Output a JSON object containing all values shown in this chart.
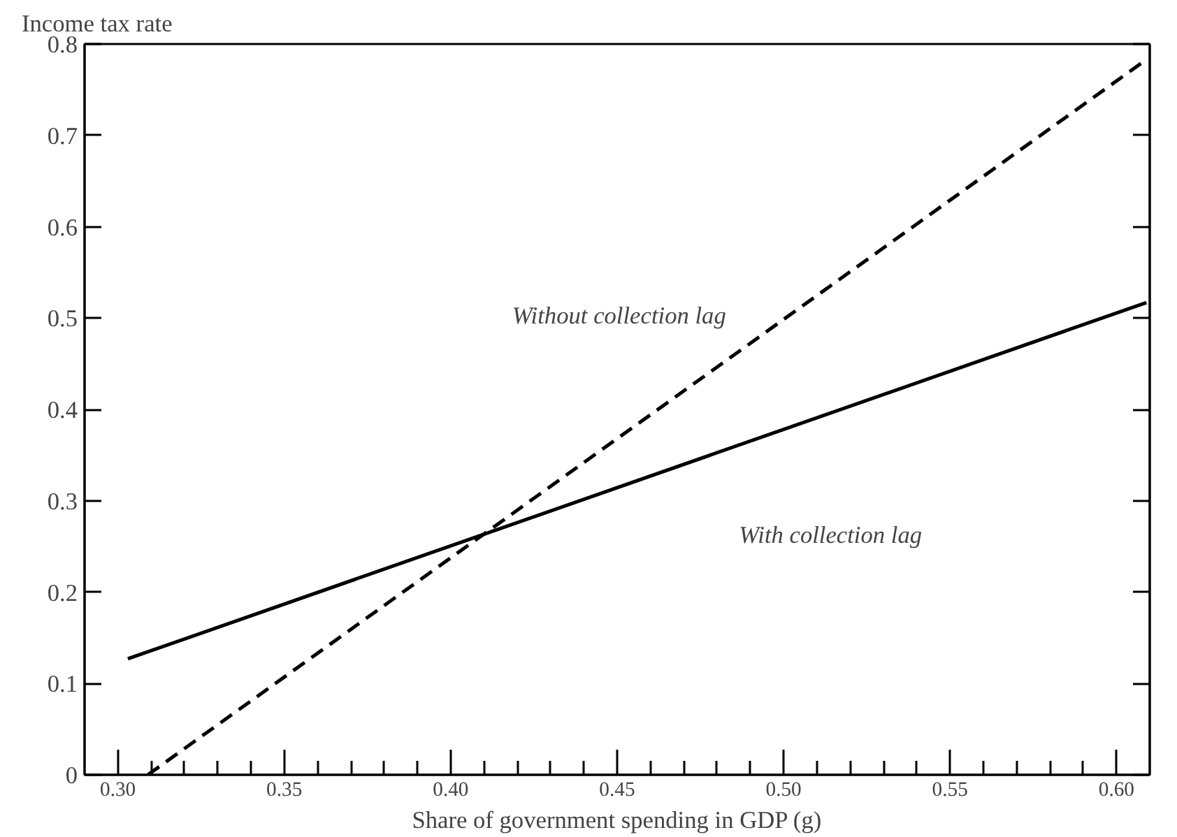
{
  "chart_data": {
    "type": "line",
    "ylabel": "Income tax rate",
    "xlabel": "Share of government spending in GDP (g)",
    "series": [
      {
        "name": "With collection lag",
        "x": [
          0.303,
          0.609
        ],
        "values": [
          0.127,
          0.517
        ],
        "color": "#000000",
        "line_style": "solid"
      },
      {
        "name": "Without collection lag",
        "x": [
          0.309,
          0.609
        ],
        "values": [
          0.0,
          0.783
        ],
        "color": "#000000",
        "line_style": "dashed"
      }
    ],
    "xlim": [
      0.29,
      0.61
    ],
    "ylim": [
      0,
      0.8
    ],
    "xticks": [
      {
        "value": 0.3,
        "label": "0.30"
      },
      {
        "value": 0.31,
        "label": null
      },
      {
        "value": 0.32,
        "label": null
      },
      {
        "value": 0.33,
        "label": null
      },
      {
        "value": 0.34,
        "label": null
      },
      {
        "value": 0.35,
        "label": "0.35"
      },
      {
        "value": 0.36,
        "label": null
      },
      {
        "value": 0.37,
        "label": null
      },
      {
        "value": 0.38,
        "label": null
      },
      {
        "value": 0.39,
        "label": null
      },
      {
        "value": 0.4,
        "label": "0.40"
      },
      {
        "value": 0.41,
        "label": null
      },
      {
        "value": 0.42,
        "label": null
      },
      {
        "value": 0.43,
        "label": null
      },
      {
        "value": 0.44,
        "label": null
      },
      {
        "value": 0.45,
        "label": "0.45"
      },
      {
        "value": 0.46,
        "label": null
      },
      {
        "value": 0.47,
        "label": null
      },
      {
        "value": 0.48,
        "label": null
      },
      {
        "value": 0.49,
        "label": null
      },
      {
        "value": 0.5,
        "label": "0.50"
      },
      {
        "value": 0.51,
        "label": null
      },
      {
        "value": 0.52,
        "label": null
      },
      {
        "value": 0.53,
        "label": null
      },
      {
        "value": 0.54,
        "label": null
      },
      {
        "value": 0.55,
        "label": "0.55"
      },
      {
        "value": 0.56,
        "label": null
      },
      {
        "value": 0.57,
        "label": null
      },
      {
        "value": 0.58,
        "label": null
      },
      {
        "value": 0.59,
        "label": null
      },
      {
        "value": 0.6,
        "label": "0.60"
      }
    ],
    "yticks": [
      0,
      0.1,
      0.2,
      0.3,
      0.4,
      0.5,
      0.6,
      0.7,
      0.8
    ],
    "grid": false,
    "marker": "none"
  }
}
